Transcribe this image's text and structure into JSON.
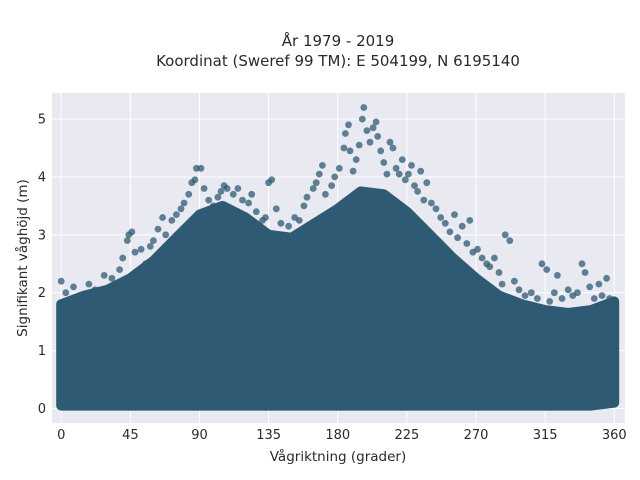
{
  "chart_data": {
    "type": "scatter",
    "title": "År 1979 - 2019",
    "subtitle": "Koordinat (Sweref 99 TM): E 504199, N 6195140",
    "xlabel": "Vågriktning (grader)",
    "ylabel": "Signifikant våghöjd (m)",
    "xlim": [
      -6,
      367
    ],
    "ylim": [
      -0.25,
      5.45
    ],
    "xticks": [
      0,
      45,
      90,
      135,
      180,
      225,
      270,
      315,
      360
    ],
    "yticks": [
      0,
      1,
      2,
      3,
      4,
      5
    ],
    "grid": true,
    "legend": "none",
    "colors": {
      "points": "#2f5a73",
      "plot_bg": "#e9e9f2",
      "grid": "#ffffff"
    },
    "density_envelope": {
      "x": [
        0,
        15,
        30,
        45,
        60,
        75,
        90,
        105,
        120,
        135,
        150,
        165,
        180,
        195,
        210,
        225,
        240,
        255,
        270,
        285,
        300,
        315,
        330,
        345,
        360
      ],
      "y_upper": [
        1.8,
        1.95,
        2.05,
        2.25,
        2.55,
        2.95,
        3.35,
        3.5,
        3.3,
        3.0,
        2.95,
        3.2,
        3.45,
        3.75,
        3.7,
        3.4,
        3.0,
        2.6,
        2.25,
        1.95,
        1.8,
        1.7,
        1.65,
        1.7,
        1.85
      ],
      "y_lower": [
        0.05,
        0.05,
        0.05,
        0.05,
        0.05,
        0.05,
        0.05,
        0.05,
        0.05,
        0.05,
        0.05,
        0.05,
        0.05,
        0.05,
        0.05,
        0.05,
        0.05,
        0.05,
        0.05,
        0.05,
        0.05,
        0.05,
        0.05,
        0.05,
        0.1
      ]
    },
    "points": [
      [
        0,
        2.2
      ],
      [
        3,
        2.0
      ],
      [
        8,
        2.1
      ],
      [
        12,
        1.95
      ],
      [
        18,
        2.15
      ],
      [
        22,
        2.05
      ],
      [
        28,
        2.3
      ],
      [
        33,
        2.25
      ],
      [
        38,
        2.4
      ],
      [
        40,
        2.6
      ],
      [
        43,
        2.9
      ],
      [
        44,
        3.0
      ],
      [
        46,
        3.05
      ],
      [
        48,
        2.7
      ],
      [
        52,
        2.75
      ],
      [
        55,
        2.5
      ],
      [
        58,
        2.8
      ],
      [
        60,
        2.9
      ],
      [
        63,
        3.1
      ],
      [
        66,
        3.3
      ],
      [
        68,
        3.0
      ],
      [
        72,
        3.25
      ],
      [
        75,
        3.35
      ],
      [
        78,
        3.45
      ],
      [
        80,
        3.55
      ],
      [
        83,
        3.7
      ],
      [
        85,
        3.9
      ],
      [
        87,
        3.95
      ],
      [
        88,
        4.15
      ],
      [
        91,
        4.15
      ],
      [
        93,
        3.8
      ],
      [
        96,
        3.6
      ],
      [
        99,
        3.5
      ],
      [
        102,
        3.65
      ],
      [
        104,
        3.75
      ],
      [
        106,
        3.85
      ],
      [
        108,
        3.8
      ],
      [
        112,
        3.7
      ],
      [
        115,
        3.8
      ],
      [
        118,
        3.6
      ],
      [
        122,
        3.55
      ],
      [
        124,
        3.7
      ],
      [
        127,
        3.4
      ],
      [
        131,
        3.25
      ],
      [
        133,
        3.3
      ],
      [
        135,
        3.9
      ],
      [
        137,
        3.95
      ],
      [
        140,
        3.45
      ],
      [
        143,
        3.2
      ],
      [
        148,
        3.15
      ],
      [
        152,
        3.3
      ],
      [
        155,
        3.25
      ],
      [
        158,
        3.5
      ],
      [
        160,
        3.65
      ],
      [
        164,
        3.8
      ],
      [
        166,
        3.9
      ],
      [
        168,
        4.05
      ],
      [
        170,
        4.2
      ],
      [
        172,
        3.7
      ],
      [
        176,
        3.85
      ],
      [
        178,
        4.0
      ],
      [
        181,
        4.15
      ],
      [
        184,
        4.5
      ],
      [
        185,
        4.75
      ],
      [
        187,
        4.9
      ],
      [
        188,
        4.45
      ],
      [
        190,
        4.1
      ],
      [
        192,
        4.3
      ],
      [
        194,
        4.55
      ],
      [
        196,
        5.0
      ],
      [
        197,
        5.2
      ],
      [
        199,
        4.8
      ],
      [
        201,
        4.6
      ],
      [
        203,
        4.85
      ],
      [
        205,
        4.95
      ],
      [
        206,
        4.7
      ],
      [
        208,
        4.45
      ],
      [
        210,
        4.25
      ],
      [
        212,
        4.05
      ],
      [
        214,
        4.6
      ],
      [
        216,
        4.5
      ],
      [
        218,
        4.15
      ],
      [
        220,
        4.05
      ],
      [
        222,
        4.3
      ],
      [
        224,
        3.95
      ],
      [
        226,
        4.05
      ],
      [
        228,
        4.2
      ],
      [
        230,
        3.85
      ],
      [
        232,
        3.75
      ],
      [
        234,
        4.1
      ],
      [
        236,
        3.6
      ],
      [
        238,
        3.9
      ],
      [
        241,
        3.55
      ],
      [
        244,
        3.45
      ],
      [
        247,
        3.3
      ],
      [
        250,
        3.2
      ],
      [
        253,
        3.05
      ],
      [
        256,
        3.35
      ],
      [
        258,
        2.95
      ],
      [
        261,
        3.15
      ],
      [
        264,
        2.85
      ],
      [
        266,
        3.25
      ],
      [
        268,
        2.7
      ],
      [
        271,
        2.75
      ],
      [
        274,
        2.6
      ],
      [
        277,
        2.5
      ],
      [
        279,
        2.45
      ],
      [
        282,
        2.6
      ],
      [
        285,
        2.35
      ],
      [
        287,
        2.15
      ],
      [
        289,
        3.0
      ],
      [
        292,
        2.9
      ],
      [
        295,
        2.2
      ],
      [
        298,
        2.05
      ],
      [
        302,
        1.95
      ],
      [
        306,
        2.0
      ],
      [
        310,
        1.9
      ],
      [
        313,
        2.5
      ],
      [
        316,
        2.4
      ],
      [
        318,
        1.85
      ],
      [
        321,
        2.0
      ],
      [
        323,
        2.3
      ],
      [
        326,
        1.9
      ],
      [
        330,
        2.05
      ],
      [
        333,
        1.95
      ],
      [
        336,
        2.0
      ],
      [
        339,
        2.5
      ],
      [
        341,
        2.35
      ],
      [
        344,
        2.1
      ],
      [
        347,
        1.9
      ],
      [
        350,
        2.15
      ],
      [
        352,
        1.95
      ],
      [
        355,
        2.25
      ],
      [
        357,
        1.9
      ],
      [
        359,
        1.85
      ],
      [
        361,
        1.8
      ]
    ]
  }
}
